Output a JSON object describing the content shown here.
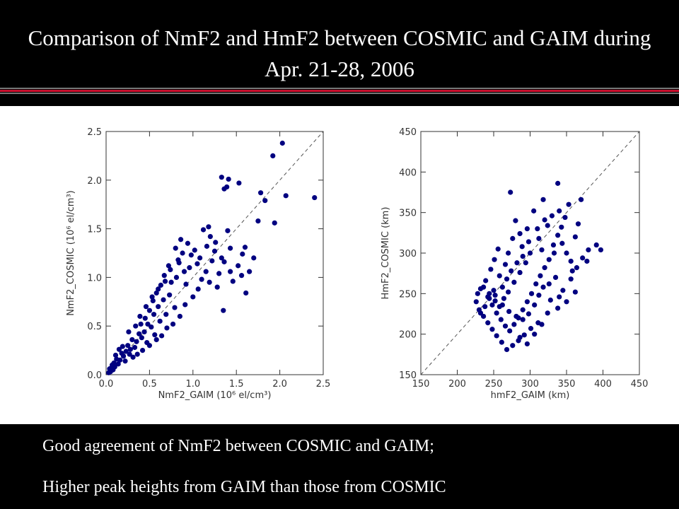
{
  "title": "Comparison of NmF2 and HmF2 between COSMIC and GAIM during Apr. 21-28, 2006",
  "colors": {
    "header_bg": "#000000",
    "rule_red": "#c8102e",
    "rule_grey": "#777777",
    "marker": "#000080",
    "diagonal": "#555555"
  },
  "bullets": [
    "Good agreement of NmF2 between COSMIC and GAIM;",
    "Higher peak heights from GAIM than those from COSMIC"
  ],
  "chart_data": [
    {
      "type": "scatter",
      "xlabel": "NmF2_GAIM (10⁶ el/cm³)",
      "ylabel": "NmF2_COSMIC (10⁶ el/cm³)",
      "xlim": [
        0.0,
        2.5
      ],
      "ylim": [
        0.0,
        2.5
      ],
      "xticks": [
        "0.0",
        "0.5",
        "1.0",
        "1.5",
        "2.0",
        "2.5"
      ],
      "yticks": [
        "0.0",
        "0.5",
        "1.0",
        "1.5",
        "2.0",
        "2.5"
      ],
      "reference_line": "y = x (dashed)",
      "grid": false,
      "points": [
        [
          1.33,
          2.03
        ],
        [
          1.41,
          2.01
        ],
        [
          1.53,
          1.97
        ],
        [
          1.39,
          1.93
        ],
        [
          1.36,
          1.91
        ],
        [
          1.92,
          2.25
        ],
        [
          2.03,
          2.38
        ],
        [
          1.78,
          1.87
        ],
        [
          1.83,
          1.79
        ],
        [
          2.07,
          1.84
        ],
        [
          2.4,
          1.82
        ],
        [
          1.94,
          1.56
        ],
        [
          1.75,
          1.58
        ],
        [
          1.43,
          1.3
        ],
        [
          1.57,
          1.24
        ],
        [
          1.6,
          1.31
        ],
        [
          1.35,
          0.66
        ],
        [
          1.61,
          0.84
        ],
        [
          1.65,
          1.06
        ],
        [
          1.3,
          1.04
        ],
        [
          1.22,
          1.17
        ],
        [
          1.33,
          1.2
        ],
        [
          1.19,
          0.95
        ],
        [
          1.28,
          0.9
        ],
        [
          1.43,
          1.06
        ],
        [
          1.26,
          1.36
        ],
        [
          1.18,
          1.52
        ],
        [
          1.12,
          1.49
        ],
        [
          0.98,
          1.23
        ],
        [
          0.96,
          1.1
        ],
        [
          0.88,
          1.25
        ],
        [
          0.84,
          1.15
        ],
        [
          0.81,
          1.0
        ],
        [
          0.75,
          0.95
        ],
        [
          0.92,
          0.93
        ],
        [
          0.73,
          0.82
        ],
        [
          0.79,
          0.69
        ],
        [
          0.66,
          0.77
        ],
        [
          0.69,
          0.62
        ],
        [
          0.6,
          0.7
        ],
        [
          0.62,
          0.55
        ],
        [
          0.55,
          0.62
        ],
        [
          0.52,
          0.49
        ],
        [
          0.56,
          0.41
        ],
        [
          0.48,
          0.52
        ],
        [
          0.44,
          0.44
        ],
        [
          0.41,
          0.38
        ],
        [
          0.47,
          0.33
        ],
        [
          0.38,
          0.42
        ],
        [
          0.35,
          0.34
        ],
        [
          0.33,
          0.28
        ],
        [
          0.3,
          0.36
        ],
        [
          0.28,
          0.26
        ],
        [
          0.25,
          0.3
        ],
        [
          0.27,
          0.21
        ],
        [
          0.23,
          0.24
        ],
        [
          0.2,
          0.19
        ],
        [
          0.22,
          0.14
        ],
        [
          0.18,
          0.22
        ],
        [
          0.16,
          0.15
        ],
        [
          0.14,
          0.11
        ],
        [
          0.12,
          0.16
        ],
        [
          0.1,
          0.08
        ],
        [
          0.09,
          0.12
        ],
        [
          0.08,
          0.05
        ],
        [
          0.06,
          0.07
        ],
        [
          0.05,
          0.03
        ],
        [
          0.04,
          0.06
        ],
        [
          0.03,
          0.02
        ],
        [
          0.07,
          0.1
        ],
        [
          0.15,
          0.26
        ],
        [
          0.11,
          0.2
        ],
        [
          0.19,
          0.29
        ],
        [
          0.31,
          0.18
        ],
        [
          0.36,
          0.21
        ],
        [
          0.42,
          0.25
        ],
        [
          0.5,
          0.3
        ],
        [
          0.58,
          0.36
        ],
        [
          0.64,
          0.4
        ],
        [
          0.7,
          0.48
        ],
        [
          0.77,
          0.52
        ],
        [
          0.85,
          0.6
        ],
        [
          0.91,
          0.72
        ],
        [
          1.0,
          0.8
        ],
        [
          1.06,
          0.88
        ],
        [
          1.1,
          0.98
        ],
        [
          1.15,
          1.06
        ],
        [
          1.05,
          1.14
        ],
        [
          1.02,
          1.28
        ],
        [
          0.94,
          1.35
        ],
        [
          0.86,
          1.39
        ],
        [
          0.8,
          1.3
        ],
        [
          0.72,
          1.12
        ],
        [
          0.67,
          1.02
        ],
        [
          0.63,
          0.92
        ],
        [
          0.58,
          0.84
        ],
        [
          0.54,
          0.76
        ],
        [
          0.5,
          0.66
        ],
        [
          0.45,
          0.58
        ],
        [
          0.4,
          0.52
        ],
        [
          1.2,
          1.42
        ],
        [
          1.25,
          1.27
        ],
        [
          1.16,
          1.32
        ],
        [
          1.08,
          1.2
        ],
        [
          1.36,
          1.16
        ],
        [
          1.4,
          1.48
        ],
        [
          1.46,
          0.96
        ],
        [
          1.52,
          1.12
        ],
        [
          1.7,
          1.2
        ],
        [
          1.56,
          1.02
        ],
        [
          0.26,
          0.44
        ],
        [
          0.34,
          0.5
        ],
        [
          0.39,
          0.6
        ],
        [
          0.46,
          0.7
        ],
        [
          0.53,
          0.8
        ],
        [
          0.6,
          0.88
        ],
        [
          0.68,
          0.96
        ],
        [
          0.74,
          1.08
        ],
        [
          0.83,
          1.18
        ],
        [
          0.9,
          1.06
        ]
      ]
    },
    {
      "type": "scatter",
      "xlabel": "hmF2_GAIM (km)",
      "ylabel": "HmF2_COSMIC (km)",
      "xlim": [
        150,
        450
      ],
      "ylim": [
        150,
        450
      ],
      "xticks": [
        "150",
        "200",
        "250",
        "300",
        "350",
        "400",
        "450"
      ],
      "yticks": [
        "150",
        "200",
        "250",
        "300",
        "350",
        "400",
        "450"
      ],
      "reference_line": "y = x (dashed)",
      "grid": false,
      "points": [
        [
          273,
          375
        ],
        [
          338,
          386
        ],
        [
          318,
          366
        ],
        [
          353,
          360
        ],
        [
          370,
          366
        ],
        [
          305,
          352
        ],
        [
          280,
          340
        ],
        [
          296,
          330
        ],
        [
          320,
          341
        ],
        [
          343,
          332
        ],
        [
          362,
          320
        ],
        [
          391,
          310
        ],
        [
          397,
          304
        ],
        [
          378,
          290
        ],
        [
          358,
          278
        ],
        [
          333,
          300
        ],
        [
          312,
          318
        ],
        [
          289,
          308
        ],
        [
          270,
          300
        ],
        [
          256,
          305
        ],
        [
          251,
          292
        ],
        [
          246,
          280
        ],
        [
          239,
          266
        ],
        [
          232,
          256
        ],
        [
          244,
          250
        ],
        [
          252,
          241
        ],
        [
          262,
          236
        ],
        [
          271,
          228
        ],
        [
          281,
          222
        ],
        [
          290,
          218
        ],
        [
          298,
          225
        ],
        [
          306,
          236
        ],
        [
          312,
          248
        ],
        [
          318,
          258
        ],
        [
          326,
          262
        ],
        [
          335,
          270
        ],
        [
          345,
          254
        ],
        [
          356,
          268
        ],
        [
          362,
          252
        ],
        [
          350,
          240
        ],
        [
          338,
          232
        ],
        [
          324,
          226
        ],
        [
          311,
          214
        ],
        [
          301,
          207
        ],
        [
          292,
          199
        ],
        [
          284,
          192
        ],
        [
          276,
          186
        ],
        [
          268,
          181
        ],
        [
          261,
          190
        ],
        [
          254,
          198
        ],
        [
          248,
          206
        ],
        [
          242,
          214
        ],
        [
          236,
          222
        ],
        [
          230,
          230
        ],
        [
          226,
          240
        ],
        [
          228,
          250
        ],
        [
          236,
          258
        ],
        [
          242,
          246
        ],
        [
          248,
          236
        ],
        [
          254,
          226
        ],
        [
          260,
          218
        ],
        [
          266,
          210
        ],
        [
          272,
          204
        ],
        [
          278,
          212
        ],
        [
          284,
          220
        ],
        [
          290,
          230
        ],
        [
          296,
          240
        ],
        [
          302,
          250
        ],
        [
          308,
          262
        ],
        [
          314,
          272
        ],
        [
          320,
          282
        ],
        [
          326,
          292
        ],
        [
          332,
          310
        ],
        [
          338,
          322
        ],
        [
          344,
          312
        ],
        [
          350,
          300
        ],
        [
          356,
          290
        ],
        [
          364,
          282
        ],
        [
          372,
          294
        ],
        [
          380,
          304
        ],
        [
          300,
          300
        ],
        [
          294,
          288
        ],
        [
          286,
          276
        ],
        [
          278,
          264
        ],
        [
          270,
          252
        ],
        [
          264,
          244
        ],
        [
          258,
          234
        ],
        [
          252,
          248
        ],
        [
          262,
          258
        ],
        [
          268,
          268
        ],
        [
          274,
          278
        ],
        [
          282,
          288
        ],
        [
          290,
          296
        ],
        [
          316,
          304
        ],
        [
          324,
          334
        ],
        [
          330,
          346
        ],
        [
          340,
          352
        ],
        [
          348,
          344
        ],
        [
          366,
          336
        ],
        [
          310,
          330
        ],
        [
          298,
          314
        ],
        [
          286,
          324
        ],
        [
          276,
          318
        ],
        [
          266,
          286
        ],
        [
          258,
          272
        ],
        [
          286,
          196
        ],
        [
          296,
          188
        ],
        [
          306,
          200
        ],
        [
          316,
          212
        ],
        [
          328,
          242
        ],
        [
          340,
          246
        ],
        [
          232,
          226
        ],
        [
          238,
          234
        ],
        [
          244,
          244
        ],
        [
          250,
          254
        ]
      ]
    }
  ]
}
